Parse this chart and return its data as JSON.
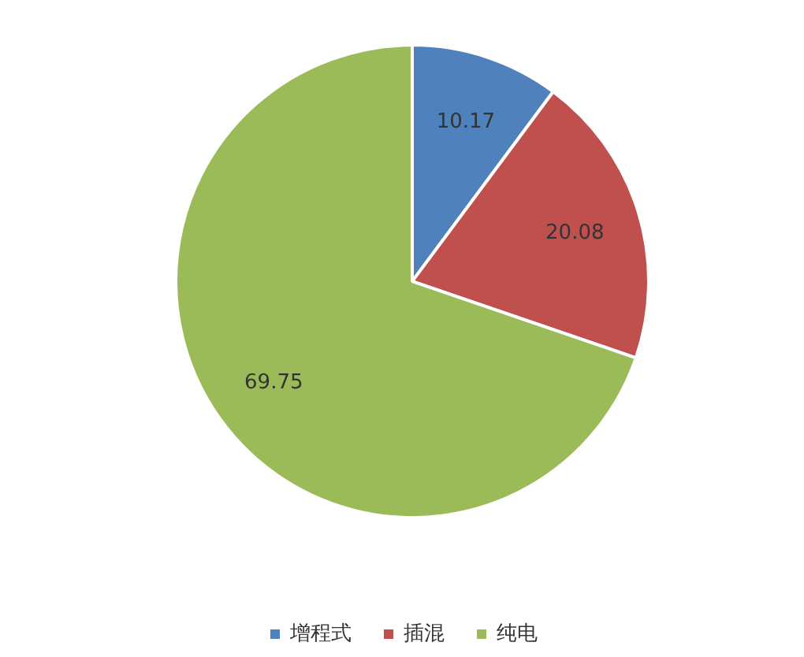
{
  "chart_data": {
    "type": "pie",
    "categories": [
      "增程式",
      "插混",
      "纯电"
    ],
    "values": [
      10.17,
      20.08,
      69.75
    ],
    "colors": [
      "#4f81bd",
      "#c0504d",
      "#9bbb59"
    ],
    "data_labels": true,
    "legend": "bottom"
  }
}
